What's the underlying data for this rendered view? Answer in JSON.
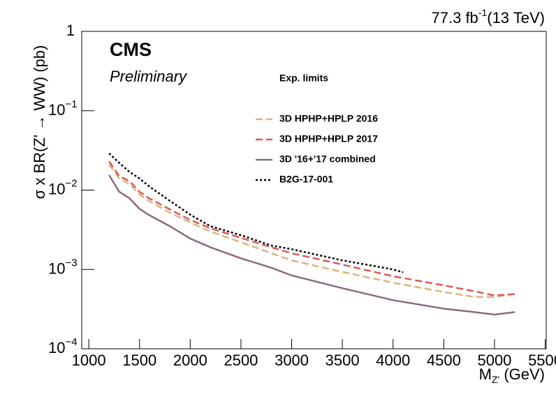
{
  "chart_data": {
    "type": "line",
    "lumi": {
      "text": "77.3 fb",
      "sup": "-1",
      "after": "(13 TeV)"
    },
    "cms_label": "CMS",
    "sub_label": "Preliminary",
    "legend_title": "Exp. limits",
    "ylabel": "σ x BR(Z' → WW) (pb)",
    "xlabel": {
      "text": "M",
      "sub": "Z'",
      "after": " (GeV)"
    },
    "log_y": true,
    "xlim": [
      930,
      5510
    ],
    "ylim": [
      0.0001,
      1
    ],
    "xticks": [
      1000,
      1500,
      2000,
      2500,
      3000,
      3500,
      4000,
      4500,
      5000,
      5500
    ],
    "yticks": [
      {
        "value": 0.0001,
        "label": "10",
        "sup": "−4"
      },
      {
        "value": 0.001,
        "label": "10",
        "sup": "−3"
      },
      {
        "value": 0.01,
        "label": "10",
        "sup": "−2"
      },
      {
        "value": 0.1,
        "label": "10",
        "sup": "−1"
      },
      1
    ],
    "series": [
      {
        "name": "3D HPHP+HPLP 2016",
        "color": "#e0b27a",
        "dash": "dashed",
        "x": [
          1200,
          1300,
          1400,
          1500,
          1600,
          1800,
          2000,
          2200,
          2500,
          2800,
          3000,
          3500,
          4000,
          4500,
          4800,
          5000,
          5200
        ],
        "values": [
          0.021,
          0.014,
          0.012,
          0.0088,
          0.0072,
          0.0052,
          0.0039,
          0.003,
          0.0022,
          0.0016,
          0.0013,
          0.00093,
          0.00068,
          0.00052,
          0.00045,
          0.00045,
          0.00049
        ]
      },
      {
        "name": "3D HPHP+HPLP 2017",
        "color": "#d9595b",
        "dash": "dashed",
        "x": [
          1200,
          1300,
          1400,
          1500,
          1600,
          1800,
          2000,
          2200,
          2500,
          2800,
          3000,
          3500,
          4000,
          4500,
          4800,
          5000,
          5200
        ],
        "values": [
          0.023,
          0.015,
          0.013,
          0.0095,
          0.0078,
          0.0057,
          0.0042,
          0.0033,
          0.0025,
          0.0019,
          0.0016,
          0.00115,
          0.00082,
          0.00063,
          0.00053,
          0.00047,
          0.00049
        ]
      },
      {
        "name": "3D '16+'17 combined",
        "color": "#8c6a80",
        "dash": "solid",
        "x": [
          1200,
          1300,
          1400,
          1500,
          1600,
          1800,
          2000,
          2200,
          2500,
          2800,
          3000,
          3500,
          4000,
          4500,
          4800,
          5000,
          5200
        ],
        "values": [
          0.0155,
          0.0095,
          0.0079,
          0.0058,
          0.0048,
          0.0035,
          0.00245,
          0.0019,
          0.00138,
          0.00105,
          0.00084,
          0.00058,
          0.00041,
          0.00032,
          0.00029,
          0.00027,
          0.00029
        ]
      },
      {
        "name": "B2G-17-001",
        "color": "#000000",
        "dash": "dotted",
        "x": [
          1200,
          1300,
          1400,
          1500,
          1600,
          1800,
          2000,
          2200,
          2500,
          2800,
          3000,
          3500,
          4000,
          4100
        ],
        "values": [
          0.029,
          0.022,
          0.017,
          0.014,
          0.011,
          0.0073,
          0.0049,
          0.0035,
          0.0027,
          0.002,
          0.0018,
          0.0013,
          0.001,
          0.00092
        ]
      }
    ]
  }
}
